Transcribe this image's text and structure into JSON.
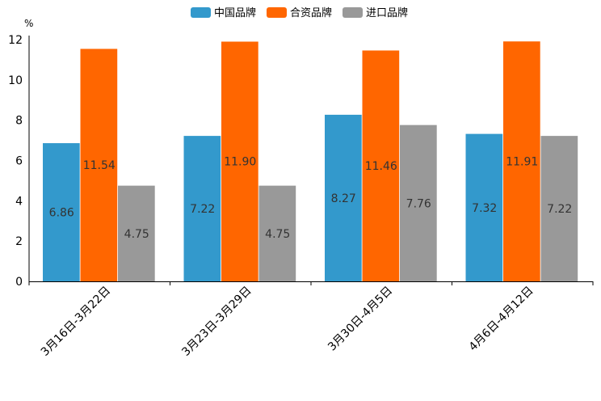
{
  "chart_data": {
    "type": "bar",
    "title": "",
    "xlabel": "",
    "ylabel": "%",
    "ylim": [
      0,
      12
    ],
    "yticks": [
      0,
      2,
      4,
      6,
      8,
      10,
      12
    ],
    "categories": [
      "3月16日-3月22日",
      "3月23日-3月29日",
      "3月30日-4月5日",
      "4月6日-4月12日"
    ],
    "series": [
      {
        "name": "中国品牌",
        "color": "#3399cc",
        "values": [
          6.86,
          7.22,
          8.27,
          7.32
        ],
        "labels": [
          "6.86",
          "7.22",
          "8.27",
          "7.32"
        ]
      },
      {
        "name": "合资品牌",
        "color": "#ff6600",
        "values": [
          11.54,
          11.9,
          11.46,
          11.91
        ],
        "labels": [
          "11.54",
          "11.90",
          "11.46",
          "11.91"
        ]
      },
      {
        "name": "进口品牌",
        "color": "#999999",
        "values": [
          4.75,
          4.75,
          7.76,
          7.22
        ],
        "labels": [
          "4.75",
          "4.75",
          "7.76",
          "7.22"
        ]
      }
    ],
    "legend": "top-center",
    "grid": false
  }
}
